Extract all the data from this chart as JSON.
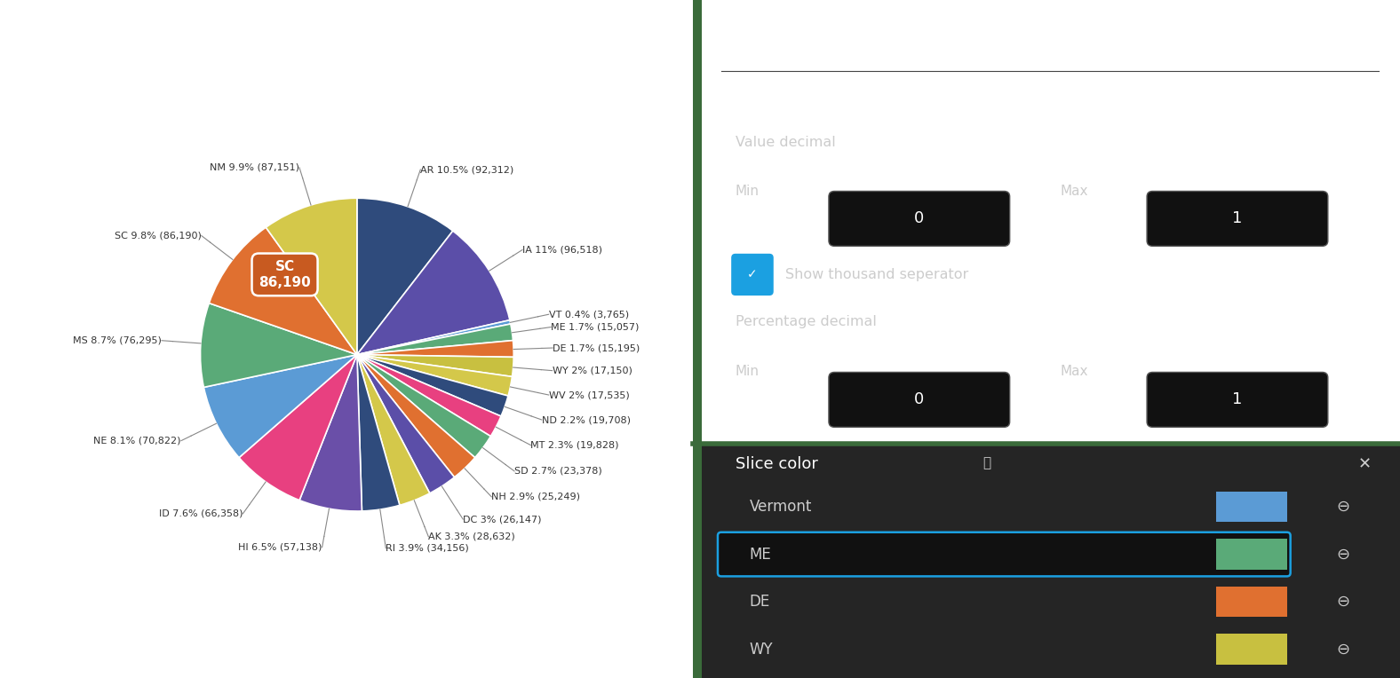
{
  "slices": [
    {
      "label": "AR",
      "pct": 10.5,
      "value": 92312,
      "color": "#2f4b7c"
    },
    {
      "label": "IA",
      "pct": 11.0,
      "value": 96518,
      "color": "#5b4ea8"
    },
    {
      "label": "VT",
      "pct": 0.4,
      "value": 3765,
      "color": "#5b9bd5"
    },
    {
      "label": "ME",
      "pct": 1.7,
      "value": 15057,
      "color": "#5aaa78"
    },
    {
      "label": "DE",
      "pct": 1.7,
      "value": 15195,
      "color": "#e07030"
    },
    {
      "label": "WY",
      "pct": 2.0,
      "value": 17150,
      "color": "#c8c040"
    },
    {
      "label": "WV",
      "pct": 2.0,
      "value": 17535,
      "color": "#d4c84a"
    },
    {
      "label": "ND",
      "pct": 2.2,
      "value": 19708,
      "color": "#2f4b7c"
    },
    {
      "label": "MT",
      "pct": 2.3,
      "value": 19828,
      "color": "#e84080"
    },
    {
      "label": "SD",
      "pct": 2.7,
      "value": 23378,
      "color": "#5aaa78"
    },
    {
      "label": "NH",
      "pct": 2.9,
      "value": 25249,
      "color": "#e07030"
    },
    {
      "label": "DC",
      "pct": 3.0,
      "value": 26147,
      "color": "#5b4ea8"
    },
    {
      "label": "AK",
      "pct": 3.3,
      "value": 28632,
      "color": "#d4c84a"
    },
    {
      "label": "RI",
      "pct": 3.9,
      "value": 34156,
      "color": "#2f4b7c"
    },
    {
      "label": "HI",
      "pct": 6.5,
      "value": 57138,
      "color": "#6a4fa8"
    },
    {
      "label": "ID",
      "pct": 7.6,
      "value": 66358,
      "color": "#e84080"
    },
    {
      "label": "NE",
      "pct": 8.1,
      "value": 70822,
      "color": "#5b9bd5"
    },
    {
      "label": "MS",
      "pct": 8.7,
      "value": 76295,
      "color": "#5aaa78"
    },
    {
      "label": "SC",
      "pct": 9.8,
      "value": 86190,
      "color": "#e07030"
    },
    {
      "label": "NM",
      "pct": 9.9,
      "value": 87151,
      "color": "#d4c84a"
    }
  ],
  "background_color": "#ffffff",
  "tooltip_label": "SC",
  "tooltip_value": "86,190",
  "tooltip_bg": "#c85a20",
  "right_panel_bg": "#2d2d2d",
  "right_panel_text": "#cccccc",
  "slice_color_entries": [
    {
      "name": "Vermont",
      "color": "#5b9bd5",
      "selected": false
    },
    {
      "name": "ME",
      "color": "#5aaa78",
      "selected": true
    },
    {
      "name": "DE",
      "color": "#e07030",
      "selected": false
    },
    {
      "name": "WY",
      "color": "#c8c040",
      "selected": false
    }
  ]
}
